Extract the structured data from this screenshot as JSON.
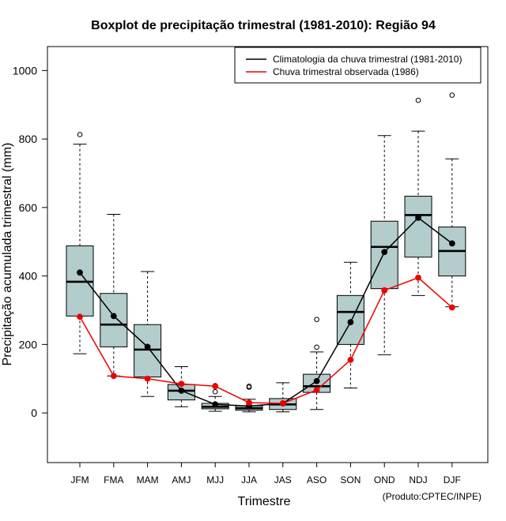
{
  "chart_data": {
    "type": "boxplot",
    "title": "Boxplot de precipitação trimestral (1981-2010): Região 94",
    "xlabel": "Trimestre",
    "ylabel": "Precipitação acumulada trimestral (mm)",
    "credit": "(Produto:CPTEC/INPE)",
    "ylim": [
      -145,
      1070
    ],
    "yticks": [
      0,
      200,
      400,
      600,
      800,
      1000
    ],
    "categories": [
      "JFM",
      "FMA",
      "MAM",
      "AMJ",
      "MJJ",
      "JJA",
      "JAS",
      "ASO",
      "SON",
      "OND",
      "NDJ",
      "DJF"
    ],
    "boxes": [
      {
        "low": 173,
        "q1": 283,
        "median": 383,
        "q3": 488,
        "high": 785,
        "outliers": [
          813
        ]
      },
      {
        "low": 108,
        "q1": 193,
        "median": 258,
        "q3": 349,
        "high": 580,
        "outliers": []
      },
      {
        "low": 48,
        "q1": 105,
        "median": 185,
        "q3": 258,
        "high": 413,
        "outliers": []
      },
      {
        "low": 18,
        "q1": 38,
        "median": 65,
        "q3": 83,
        "high": 135,
        "outliers": []
      },
      {
        "low": 5,
        "q1": 12,
        "median": 18,
        "q3": 28,
        "high": 48,
        "outliers": [
          80,
          62
        ]
      },
      {
        "low": 3,
        "q1": 8,
        "median": 14,
        "q3": 21,
        "high": 40,
        "outliers": [
          78,
          75
        ]
      },
      {
        "low": 3,
        "q1": 10,
        "median": 25,
        "q3": 42,
        "high": 88,
        "outliers": []
      },
      {
        "low": 10,
        "q1": 60,
        "median": 78,
        "q3": 113,
        "high": 178,
        "outliers": [
          273,
          192
        ]
      },
      {
        "low": 73,
        "q1": 200,
        "median": 295,
        "q3": 343,
        "high": 440,
        "outliers": []
      },
      {
        "low": 170,
        "q1": 363,
        "median": 485,
        "q3": 560,
        "high": 810,
        "outliers": []
      },
      {
        "low": 343,
        "q1": 455,
        "median": 578,
        "q3": 633,
        "high": 823,
        "outliers": [
          913
        ]
      },
      {
        "low": 310,
        "q1": 400,
        "median": 473,
        "q3": 543,
        "high": 742,
        "outliers": [
          928
        ]
      }
    ],
    "series": [
      {
        "name": "Climatologia da chuva trimestral (1981-2010)",
        "color": "#000000",
        "values": [
          410,
          283,
          193,
          65,
          25,
          20,
          28,
          93,
          265,
          470,
          570,
          495
        ]
      },
      {
        "name": "Chuva trimestral observada (1986)",
        "color": "#ee0000",
        "values": [
          281,
          108,
          100,
          85,
          78,
          30,
          28,
          67,
          155,
          358,
          395,
          308
        ]
      }
    ],
    "box_fill": "#b3cccc",
    "legend_position": "top-right"
  }
}
